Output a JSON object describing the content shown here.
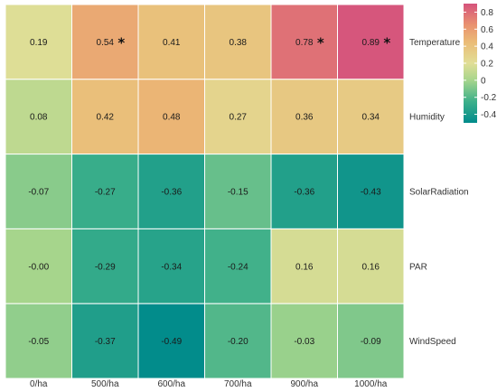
{
  "chart_data": {
    "type": "heatmap",
    "title": "",
    "xlabel": "",
    "ylabel": "",
    "x_categories": [
      "0/ha",
      "500/ha",
      "600/ha",
      "700/ha",
      "900/ha",
      "1000/ha"
    ],
    "y_categories": [
      "Temperature",
      "Humidity",
      "SolarRadiation",
      "PAR",
      "WindSpeed"
    ],
    "values": [
      [
        0.19,
        0.54,
        0.41,
        0.38,
        0.78,
        0.89
      ],
      [
        0.08,
        0.42,
        0.48,
        0.27,
        0.36,
        0.34
      ],
      [
        -0.07,
        -0.27,
        -0.36,
        -0.15,
        -0.36,
        -0.43
      ],
      [
        0.0,
        -0.29,
        -0.34,
        -0.24,
        0.16,
        0.16
      ],
      [
        -0.05,
        -0.37,
        -0.49,
        -0.2,
        -0.03,
        -0.09
      ]
    ],
    "labels": [
      [
        "0.19",
        "0.54",
        "0.41",
        "0.38",
        "0.78",
        "0.89"
      ],
      [
        "0.08",
        "0.42",
        "0.48",
        "0.27",
        "0.36",
        "0.34"
      ],
      [
        "-0.07",
        "-0.27",
        "-0.36",
        "-0.15",
        "-0.36",
        "-0.43"
      ],
      [
        "-0.00",
        "-0.29",
        "-0.34",
        "-0.24",
        "0.16",
        "0.16"
      ],
      [
        "-0.05",
        "-0.37",
        "-0.49",
        "-0.20",
        "-0.03",
        "-0.09"
      ]
    ],
    "significant": [
      [
        false,
        true,
        false,
        false,
        true,
        true
      ],
      [
        false,
        false,
        false,
        false,
        false,
        false
      ],
      [
        false,
        false,
        false,
        false,
        false,
        false
      ],
      [
        false,
        false,
        false,
        false,
        false,
        false
      ],
      [
        false,
        false,
        false,
        false,
        false,
        false
      ]
    ],
    "significance_marker": "*",
    "colorbar": {
      "ticks": [
        0.8,
        0.6,
        0.4,
        0.2,
        0,
        -0.2,
        -0.4
      ],
      "range": [
        -0.5,
        0.9
      ],
      "stops": [
        {
          "value": -0.5,
          "color": "#008B8B"
        },
        {
          "value": -0.25,
          "color": "#3DB08A"
        },
        {
          "value": 0.0,
          "color": "#A6D58C"
        },
        {
          "value": 0.2,
          "color": "#E1DE96"
        },
        {
          "value": 0.45,
          "color": "#EBBB76"
        },
        {
          "value": 0.65,
          "color": "#E99270"
        },
        {
          "value": 0.9,
          "color": "#D5537C"
        }
      ]
    },
    "legend_position": "right",
    "grid": false
  }
}
